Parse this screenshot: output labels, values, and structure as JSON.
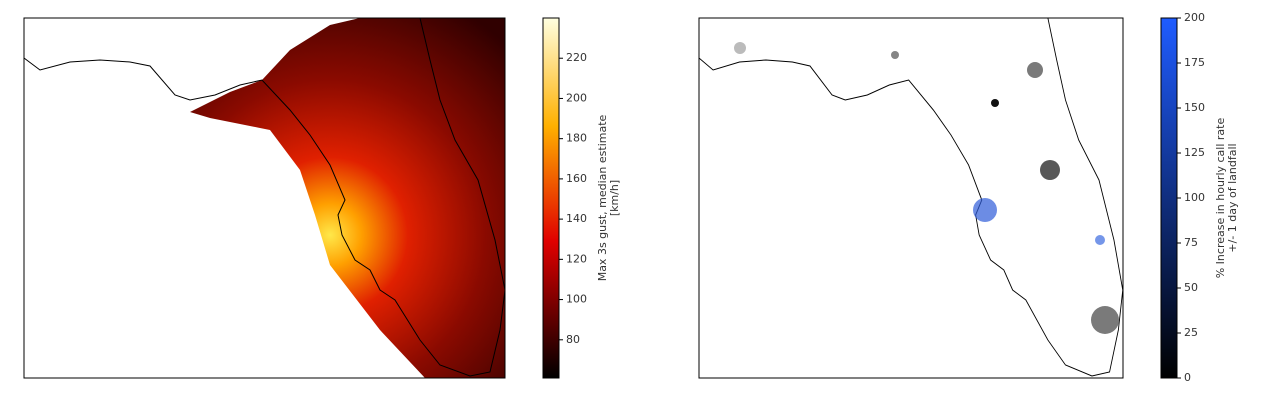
{
  "panels": [
    {
      "colorbar": {
        "label_lines": [
          "Max 3s gust, median estimate",
          "[km/h]"
        ],
        "lim": [
          61,
          240
        ],
        "ticks": [
          80,
          100,
          120,
          140,
          160,
          180,
          200,
          220
        ]
      }
    },
    {
      "colorbar": {
        "label_lines": [
          "% Increase in hourly call rate",
          "+/- 1 day of landfall"
        ],
        "lim": [
          0,
          200
        ],
        "ticks": [
          0,
          25,
          50,
          75,
          100,
          125,
          150,
          175,
          200
        ]
      }
    }
  ]
}
